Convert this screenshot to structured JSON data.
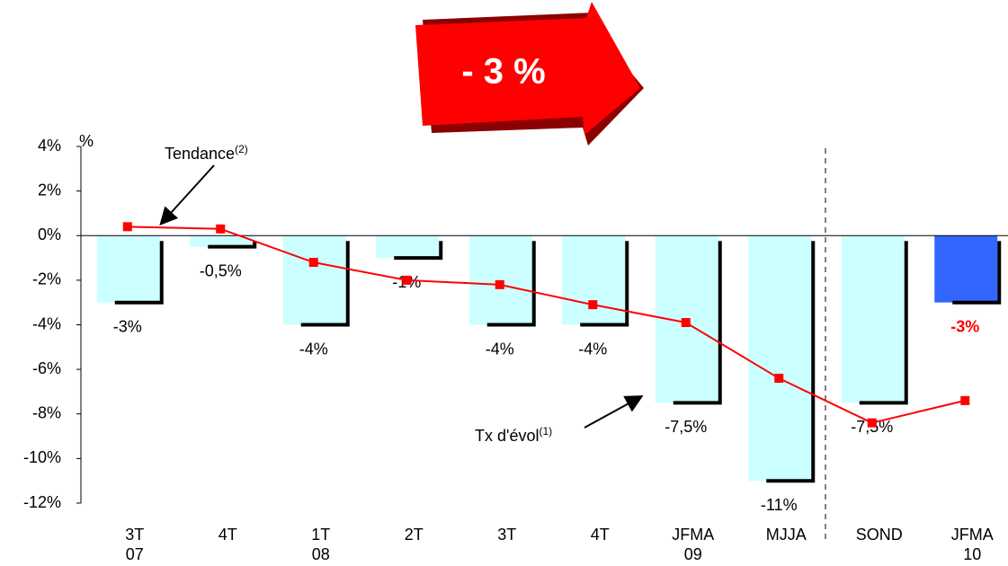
{
  "chart_data": {
    "type": "bar",
    "banner": "- 3 %",
    "y_unit": "%",
    "annotations": [
      {
        "text": "Tendance",
        "sup": "(2)"
      },
      {
        "text": "Tx d'évol",
        "sup": "(1)"
      }
    ],
    "categories": [
      "3T\n07",
      "4T",
      "1T\n08",
      "2T",
      "3T",
      "4T",
      "JFMA\n09",
      "MJJA",
      "SOND",
      "JFMA\n10"
    ],
    "series": [
      {
        "type": "bar",
        "colors": [
          "#ccffff",
          "#ccffff",
          "#ccffff",
          "#ccffff",
          "#ccffff",
          "#ccffff",
          "#ccffff",
          "#ccffff",
          "#ccffff",
          "#3366ff"
        ],
        "values": [
          -3,
          -0.5,
          -4,
          -1,
          -4,
          -4,
          -7.5,
          -11,
          -7.5,
          -3
        ],
        "value_labels": [
          "-3%",
          "-0,5%",
          "-4%",
          "-1%",
          "-4%",
          "-4%",
          "-7,5%",
          "-11%",
          "-7,5%",
          "-3%"
        ]
      },
      {
        "type": "line",
        "color": "#ff0000",
        "values": [
          0.4,
          0.3,
          -1.2,
          -2.0,
          -2.2,
          -3.1,
          -3.9,
          -6.4,
          -8.4,
          -7.4
        ]
      }
    ],
    "ylim": [
      -12,
      4
    ],
    "yticks": [
      {
        "value": 4,
        "label": "4%"
      },
      {
        "value": 2,
        "label": "2%"
      },
      {
        "value": 0,
        "label": "0%"
      },
      {
        "value": -2,
        "label": "-2%"
      },
      {
        "value": -4,
        "label": "-4%"
      },
      {
        "value": -6,
        "label": "-6%"
      },
      {
        "value": -8,
        "label": "-8%"
      },
      {
        "value": -10,
        "label": "-10%"
      },
      {
        "value": -12,
        "label": "-12%"
      }
    ]
  }
}
